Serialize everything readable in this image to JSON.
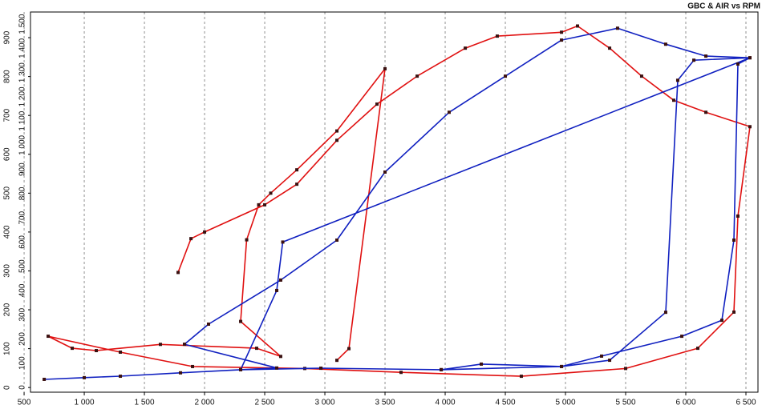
{
  "chart_data": {
    "type": "line",
    "title": "GBC & AIR vs RPM",
    "xlim": [
      553,
      6600
    ],
    "xticks": [
      500,
      {
        "value": 1000,
        "label": "1 000"
      },
      {
        "value": 1500,
        "label": "1 500"
      },
      {
        "value": 2000,
        "label": "2 000"
      },
      {
        "value": 2500,
        "label": "2 500"
      },
      {
        "value": 3000,
        "label": "3 000"
      },
      {
        "value": 3500,
        "label": "3 500"
      },
      {
        "value": 4000,
        "label": "4 000"
      },
      {
        "value": 4500,
        "label": "4 500"
      },
      {
        "value": 5000,
        "label": "5 000"
      },
      {
        "value": 5500,
        "label": "5 500"
      },
      {
        "value": 6000,
        "label": "6 000"
      },
      {
        "value": 6500,
        "label": "6 500"
      }
    ],
    "ylim": [
      -12,
      966
    ],
    "yticks": [
      0,
      100,
      200,
      300,
      400,
      500,
      600,
      700,
      800,
      900
    ],
    "y2lim": [
      -20,
      1550
    ],
    "y2ticks": [
      0,
      100,
      200,
      300,
      400,
      500,
      600,
      700,
      800,
      900,
      {
        "value": 1000,
        "label": "1 000"
      },
      {
        "value": 1100,
        "label": "1 100"
      },
      {
        "value": 1200,
        "label": "1 200"
      },
      {
        "value": 1300,
        "label": "1 300"
      },
      {
        "value": 1400,
        "label": "1 400"
      },
      {
        "value": 1500,
        "label": "1 500"
      }
    ],
    "grid": true,
    "marker_color": "#3a1010",
    "series": [
      {
        "color": "#e01010",
        "axis": "y",
        "x": [
          1780,
          1887,
          2000,
          2500,
          2767,
          3100,
          3433,
          3767,
          4167,
          4433,
          4967,
          5100,
          5367,
          5633,
          5900,
          6167,
          6533,
          6433,
          6400,
          6100,
          5500,
          4633,
          3633,
          2833,
          1900,
          1300,
          700,
          900,
          1100,
          1633,
          2433,
          2633,
          2300,
          2350,
          2450,
          2550,
          2767,
          3100,
          3500,
          3200,
          3100
        ],
        "values": [
          296,
          383,
          400,
          470,
          523,
          636,
          729,
          801,
          873,
          904,
          914,
          930,
          873,
          801,
          739,
          708,
          671,
          441,
          194,
          101,
          49,
          29,
          39,
          49,
          54,
          91,
          132,
          101,
          95,
          111,
          101,
          80,
          170,
          380,
          470,
          500,
          560,
          660,
          820,
          100,
          70
        ]
      },
      {
        "color": "#1020c0",
        "axis": "y2",
        "x": [
          667,
          1000,
          1300,
          1800,
          2300,
          2600,
          1833,
          2033,
          2633,
          3100,
          3500,
          4033,
          4500,
          4967,
          5433,
          5833,
          6167,
          6533,
          6433,
          6400,
          6300,
          5967,
          5300,
          4967,
          4300,
          3967,
          2967,
          2300,
          2600,
          2650,
          6533,
          6067,
          5933,
          5833,
          5367,
          4967,
          3967,
          2967
        ],
        "values": [
          33,
          40,
          46,
          60,
          73,
          80,
          178,
          261,
          443,
          608,
          889,
          1136,
          1285,
          1434,
          1483,
          1417,
          1368,
          1361,
          1335,
          608,
          277,
          211,
          129,
          86,
          96,
          73,
          79,
          73,
          400,
          600,
          1361,
          1351,
          1268,
          310,
          112,
          86,
          73,
          79
        ]
      }
    ]
  }
}
